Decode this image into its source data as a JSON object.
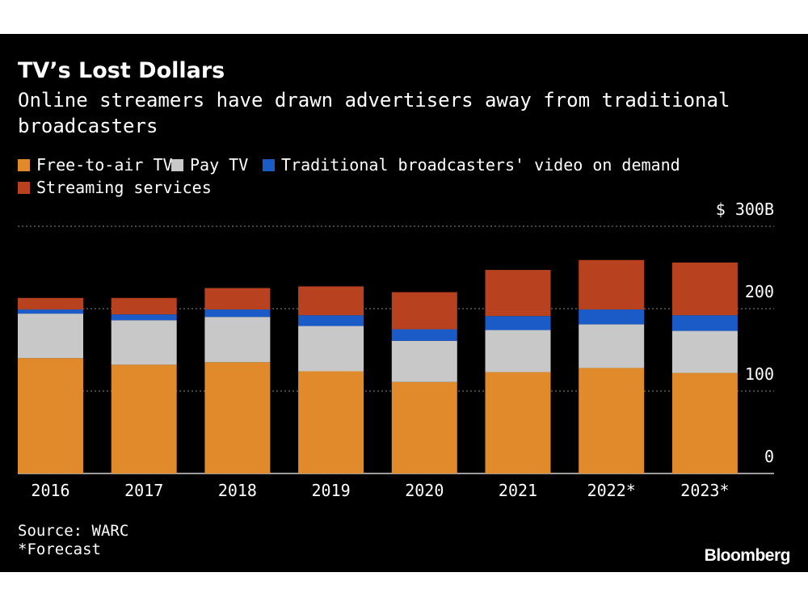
{
  "header": {
    "title": "TV’s Lost Dollars",
    "subtitle": "Online streamers have drawn advertisers away from traditional broadcasters"
  },
  "footer": {
    "source": "Source: WARC",
    "note": "*Forecast",
    "brand": "Bloomberg"
  },
  "chart_data": {
    "type": "bar",
    "stacked": true,
    "categories": [
      "2016",
      "2017",
      "2018",
      "2019",
      "2020",
      "2021",
      "2022*",
      "2023*"
    ],
    "series": [
      {
        "name": "Free-to-air TV",
        "color": "#e08a2b",
        "values": [
          140,
          132,
          135,
          124,
          111,
          123,
          128,
          122
        ]
      },
      {
        "name": "Pay TV",
        "color": "#c8c8c8",
        "values": [
          54,
          54,
          55,
          55,
          50,
          51,
          53,
          51
        ]
      },
      {
        "name": "Traditional broadcasters' video on demand",
        "color": "#1a5bc8",
        "values": [
          5,
          7,
          9,
          13,
          14,
          17,
          18,
          19
        ]
      },
      {
        "name": "Streaming services",
        "color": "#b8421f",
        "values": [
          14,
          20,
          26,
          35,
          45,
          56,
          60,
          64
        ]
      }
    ],
    "y_ticks": [
      {
        "value": 0,
        "label": "0"
      },
      {
        "value": 100,
        "label": "100"
      },
      {
        "value": 200,
        "label": "200"
      },
      {
        "value": 300,
        "label": "$ 300B"
      }
    ],
    "ylim": [
      0,
      300
    ],
    "grid": true,
    "legend_position": "top-left"
  }
}
